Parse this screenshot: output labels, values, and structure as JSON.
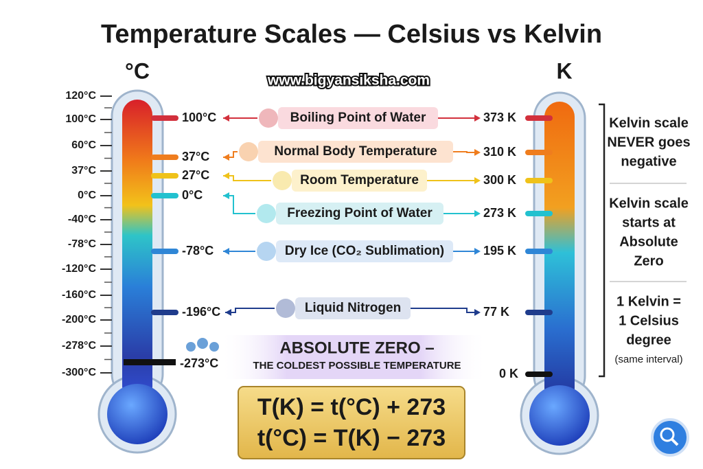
{
  "title": "Temperature Scales — Celsius vs Kelvin",
  "website": "www.bigyansiksha.com",
  "celsius": {
    "unit": "°C",
    "ticks": [
      "120°C",
      "100°C",
      "60°C",
      "37°C",
      "0°C",
      "-40°C",
      "-78°C",
      "-120°C",
      "-160°C",
      "-200°C",
      "-278°C",
      "-300°C"
    ]
  },
  "kelvin": {
    "unit": "K"
  },
  "points": [
    {
      "label": "Boiling Point of Water",
      "celsius": "100°C",
      "kelvin": "373 K",
      "color": "#d2303c"
    },
    {
      "label": "Normal Body Temperature",
      "celsius": "37°C",
      "kelvin": "310 K",
      "color": "#ef7d1e"
    },
    {
      "label": "Room Temperature",
      "celsius": "27°C",
      "kelvin": "300 K",
      "color": "#efc21a"
    },
    {
      "label": "Freezing Point of Water",
      "celsius": "0°C",
      "kelvin": "273 K",
      "color": "#22c1cf"
    },
    {
      "label": "Dry Ice (CO₂ Sublimation)",
      "celsius": "-78°C",
      "kelvin": "195 K",
      "color": "#2f86d6"
    },
    {
      "label": "Liquid Nitrogen",
      "celsius": "-196°C",
      "kelvin": "77 K",
      "color": "#1f3c8c"
    }
  ],
  "absolute_zero": {
    "title": "ABSOLUTE ZERO –",
    "subtitle": "THE COLDEST POSSIBLE TEMPERATURE",
    "celsius": "-273°C",
    "kelvin": "0 K"
  },
  "notes": [
    {
      "lines": [
        "Kelvin scale",
        "NEVER goes",
        "negative"
      ]
    },
    {
      "lines": [
        "Kelvin scale",
        "starts at",
        "Absolute",
        "Zero"
      ]
    },
    {
      "lines": [
        "1 Kelvin =",
        "1 Celsius",
        "degree"
      ],
      "aside": "(same interval)"
    }
  ],
  "formulas": [
    "T(K) = t(°C) + 273",
    "t(°C) = T(K) − 273"
  ]
}
